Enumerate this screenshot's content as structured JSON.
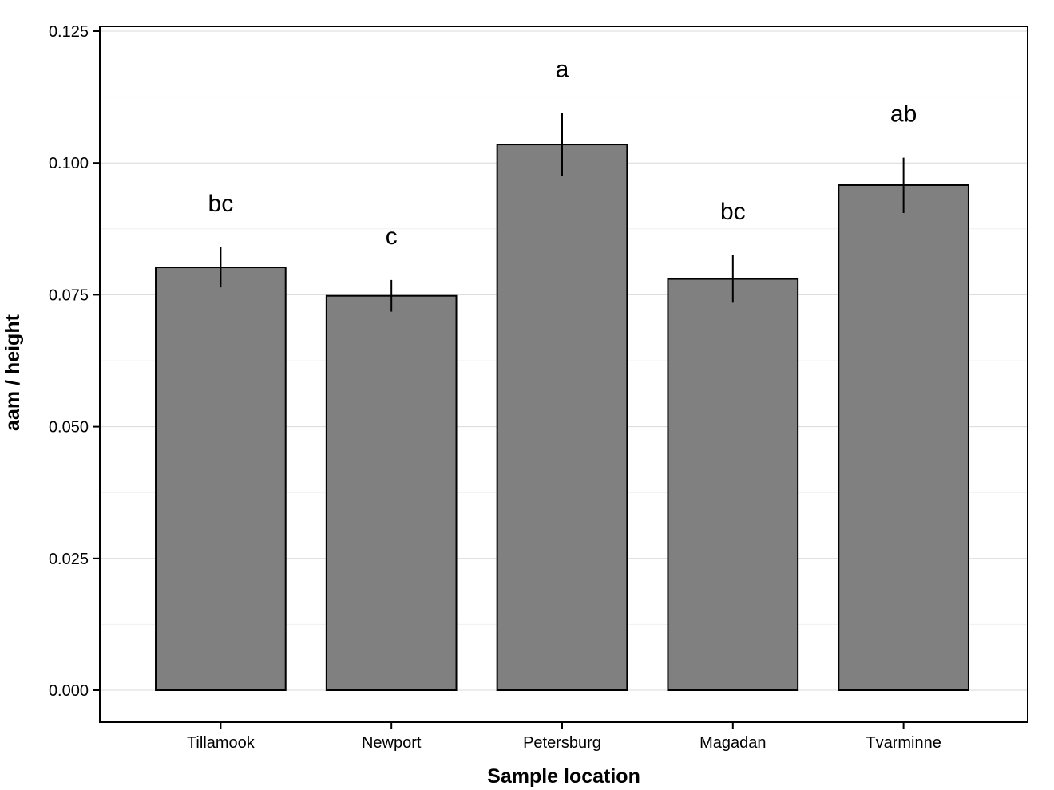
{
  "chart_data": {
    "type": "bar",
    "xlabel": "Sample location",
    "ylabel": "aam / height",
    "ylim": [
      -0.006,
      0.1255
    ],
    "yticks": [
      0.0,
      0.025,
      0.05,
      0.075,
      0.1,
      0.125
    ],
    "ytick_labels": [
      "0.000",
      "0.025",
      "0.050",
      "0.075",
      "0.100",
      "0.125"
    ],
    "categories": [
      "Tillamook",
      "Newport",
      "Petersburg",
      "Magadan",
      "Tvarminne"
    ],
    "values": [
      0.0802,
      0.0748,
      0.1035,
      0.078,
      0.0958
    ],
    "error_low": [
      0.0764,
      0.0718,
      0.0975,
      0.0735,
      0.0905
    ],
    "error_high": [
      0.084,
      0.0778,
      0.1095,
      0.0825,
      0.101
    ],
    "significance_labels": [
      "bc",
      "c",
      "a",
      "bc",
      "ab"
    ],
    "grid": true,
    "colors": {
      "bar_fill": "#808080",
      "bar_stroke": "#000000",
      "grid_major": "#d9d9d9",
      "grid_minor": "#f0f0f0",
      "background": "#ffffff"
    }
  }
}
